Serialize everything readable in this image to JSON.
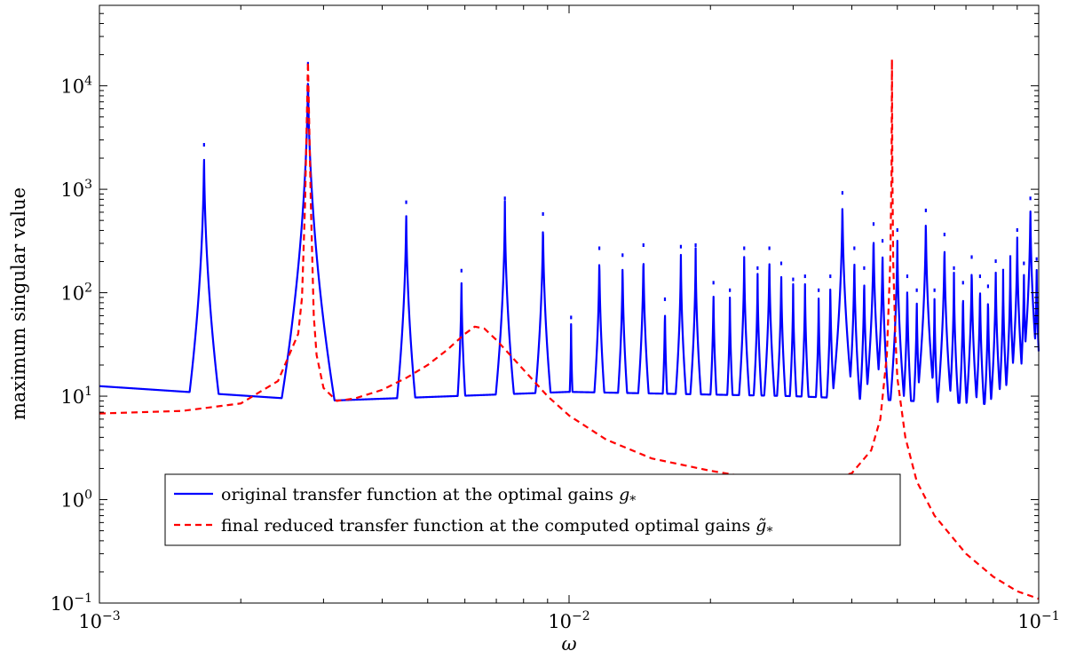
{
  "chart_data": {
    "type": "line",
    "xlabel": "ω",
    "ylabel": "maximum singular value",
    "x_scale": "log",
    "y_scale": "log",
    "xlim": [
      0.001,
      0.1
    ],
    "ylim": [
      0.1,
      60000
    ],
    "grid": false,
    "legend_position": "bottom-center",
    "x_ticks": [
      {
        "value": 0.001,
        "base": "10",
        "exp": "−3"
      },
      {
        "value": 0.01,
        "base": "10",
        "exp": "−2"
      },
      {
        "value": 0.1,
        "base": "10",
        "exp": "−1"
      }
    ],
    "y_ticks": [
      {
        "value": 0.1,
        "base": "10",
        "exp": "−1"
      },
      {
        "value": 1,
        "base": "10",
        "exp": "0"
      },
      {
        "value": 10,
        "base": "10",
        "exp": "1"
      },
      {
        "value": 100,
        "base": "10",
        "exp": "2"
      },
      {
        "value": 1000,
        "base": "10",
        "exp": "3"
      },
      {
        "value": 10000,
        "base": "10",
        "exp": "4"
      }
    ],
    "series": [
      {
        "name": "original transfer function at the optimal gains g*",
        "legend_main": "original transfer function at the optimal gains ",
        "legend_symbol": "g",
        "legend_sub": "*",
        "color": "#0000ff",
        "style": "solid",
        "baseline": [
          [
            0.001,
            12.5
          ],
          [
            0.003,
            9.0
          ],
          [
            0.01,
            11.0
          ],
          [
            0.03,
            10.0
          ],
          [
            0.1,
            8.0
          ]
        ],
        "peaks": [
          [
            0.00167,
            2800
          ],
          [
            0.00278,
            17000
          ],
          [
            0.0045,
            780
          ],
          [
            0.0059,
            170
          ],
          [
            0.0073,
            850
          ],
          [
            0.0088,
            600
          ],
          [
            0.0101,
            60
          ],
          [
            0.0116,
            280
          ],
          [
            0.013,
            240
          ],
          [
            0.0144,
            300
          ],
          [
            0.016,
            90
          ],
          [
            0.0173,
            290
          ],
          [
            0.0186,
            300
          ],
          [
            0.0203,
            130
          ],
          [
            0.022,
            110
          ],
          [
            0.0236,
            280
          ],
          [
            0.0252,
            180
          ],
          [
            0.0267,
            280
          ],
          [
            0.0283,
            200
          ],
          [
            0.03,
            140
          ],
          [
            0.0318,
            150
          ],
          [
            0.034,
            110
          ],
          [
            0.036,
            150
          ],
          [
            0.0382,
            960
          ],
          [
            0.0405,
            280
          ],
          [
            0.0425,
            180
          ],
          [
            0.0445,
            480
          ],
          [
            0.0465,
            330
          ],
          [
            0.05,
            420
          ],
          [
            0.0525,
            150
          ],
          [
            0.055,
            110
          ],
          [
            0.0575,
            650
          ],
          [
            0.06,
            110
          ],
          [
            0.063,
            380
          ],
          [
            0.066,
            180
          ],
          [
            0.069,
            130
          ],
          [
            0.072,
            230
          ],
          [
            0.075,
            150
          ],
          [
            0.078,
            120
          ],
          [
            0.081,
            210
          ],
          [
            0.084,
            170
          ],
          [
            0.087,
            230
          ],
          [
            0.09,
            420
          ],
          [
            0.093,
            200
          ],
          [
            0.096,
            850
          ],
          [
            0.099,
            220
          ]
        ]
      },
      {
        "name": "final reduced transfer function at the computed optimal gains g̃*",
        "legend_main": "final reduced transfer function at the computed optimal gains ",
        "legend_symbol": "g̃",
        "legend_sub": "*",
        "color": "#ff0000",
        "style": "dashed",
        "x": [
          0.001,
          0.0015,
          0.002,
          0.0024,
          0.00265,
          0.0027,
          0.00274,
          0.00278,
          0.00282,
          0.00286,
          0.0029,
          0.003,
          0.0032,
          0.0035,
          0.004,
          0.0045,
          0.005,
          0.0055,
          0.006,
          0.0063,
          0.0066,
          0.007,
          0.008,
          0.009,
          0.01,
          0.012,
          0.015,
          0.02,
          0.025,
          0.03,
          0.035,
          0.04,
          0.044,
          0.046,
          0.0475,
          0.0483,
          0.0486,
          0.0487,
          0.0488,
          0.049,
          0.0495,
          0.05,
          0.052,
          0.055,
          0.06,
          0.07,
          0.08,
          0.09,
          0.1
        ],
        "y": [
          6.8,
          7.2,
          8.5,
          14,
          40,
          90,
          700,
          17000,
          700,
          60,
          25,
          12,
          9.0,
          9.5,
          11.5,
          15,
          20,
          28,
          40,
          47,
          45,
          35,
          18,
          10,
          6.5,
          3.8,
          2.5,
          1.9,
          1.6,
          1.5,
          1.5,
          1.8,
          3.0,
          6.0,
          25,
          200,
          1500,
          18000,
          1500,
          200,
          40,
          15,
          4.0,
          1.5,
          0.7,
          0.3,
          0.18,
          0.13,
          0.11
        ]
      }
    ]
  }
}
